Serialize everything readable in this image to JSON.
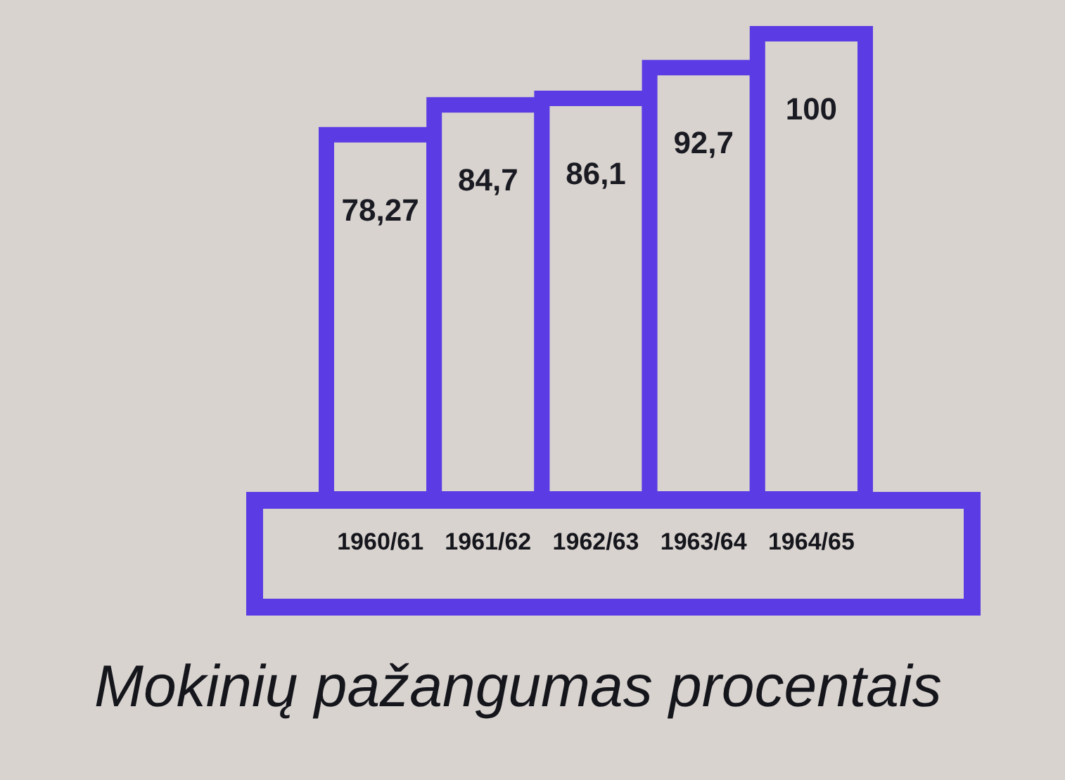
{
  "chart_data": {
    "type": "bar",
    "title": "Mokinių pažangumas procentais",
    "categories": [
      "1960/61",
      "1961/62",
      "1962/63",
      "1963/64",
      "1964/65"
    ],
    "values": [
      78.27,
      84.7,
      86.1,
      92.7,
      100
    ],
    "value_labels": [
      "78,27",
      "84,7",
      "86,1",
      "92,7",
      "100"
    ],
    "color": "#5b3ce4",
    "grid": false,
    "tick_labels": "x"
  }
}
